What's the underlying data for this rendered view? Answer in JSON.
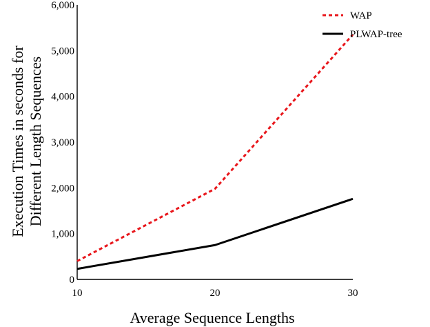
{
  "chart_data": {
    "type": "line",
    "x": [
      10,
      20,
      30
    ],
    "xlim": [
      10,
      30
    ],
    "ylim": [
      0,
      6000
    ],
    "x_ticks": [
      "10",
      "20",
      "30"
    ],
    "y_ticks": [
      "0",
      "1,000",
      "2,000",
      "3,000",
      "4,000",
      "5,000",
      "6,000"
    ],
    "xlabel": "Average Sequence Lengths",
    "ylabel_lines": [
      "Execution Times in seconds for",
      "Different Length Sequences"
    ],
    "grid": false,
    "legend_position": "top-right",
    "series": [
      {
        "name": "WAP",
        "values": [
          400,
          1980,
          5350
        ],
        "color": "#e8161b",
        "style": "dashed"
      },
      {
        "name": "PLWAP-tree",
        "values": [
          230,
          750,
          1760
        ],
        "color": "#000000",
        "style": "solid"
      }
    ]
  }
}
